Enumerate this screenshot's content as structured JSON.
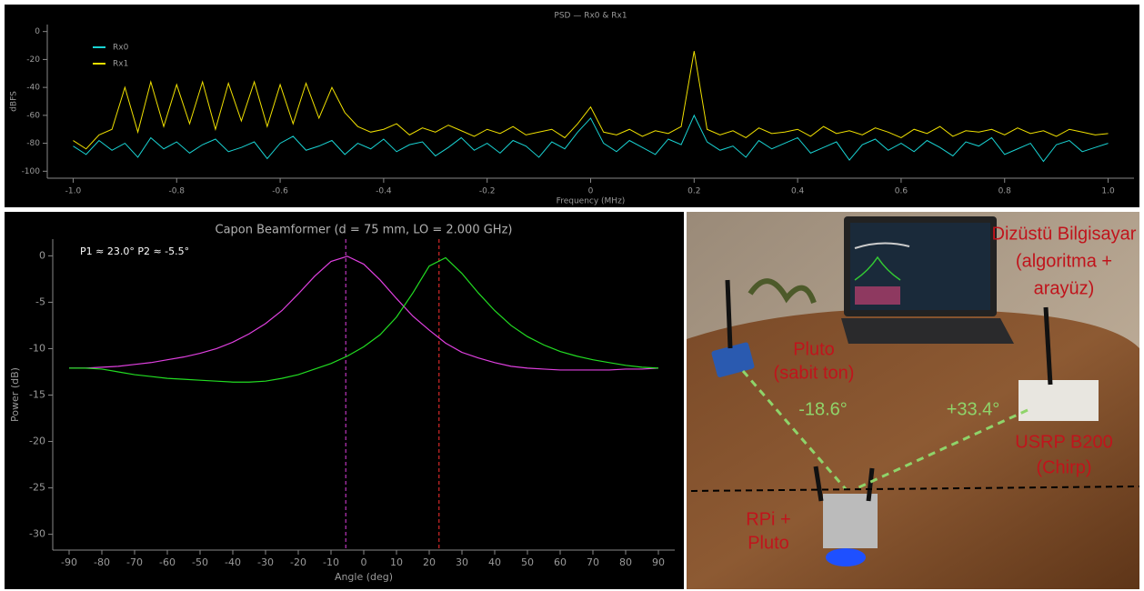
{
  "chart_data": [
    {
      "type": "line",
      "title": "PSD — Rx0 & Rx1",
      "x_label": "Frequency (MHz)",
      "y_label": "dBFS",
      "xlim": [
        -1.05,
        1.05
      ],
      "ylim": [
        -105,
        5
      ],
      "xticks": [
        {
          "value": -1.0,
          "label": "-1.0"
        },
        -0.8,
        -0.6,
        -0.4,
        -0.2,
        0,
        0.2,
        0.4,
        0.6,
        0.8,
        {
          "value": 1.0,
          "label": "1.0"
        }
      ],
      "yticks": [
        0,
        -20,
        -40,
        -60,
        -80,
        -100
      ],
      "legend": "upper left",
      "x": [
        -1.0,
        -0.975,
        -0.95,
        -0.925,
        -0.9,
        -0.875,
        -0.85,
        -0.825,
        -0.8,
        -0.775,
        -0.75,
        -0.725,
        -0.7,
        -0.675,
        -0.65,
        -0.625,
        -0.6,
        -0.575,
        -0.55,
        -0.525,
        -0.5,
        -0.475,
        -0.45,
        -0.425,
        -0.4,
        -0.375,
        -0.35,
        -0.325,
        -0.3,
        -0.275,
        -0.25,
        -0.225,
        -0.2,
        -0.175,
        -0.15,
        -0.125,
        -0.1,
        -0.075,
        -0.05,
        -0.025,
        0,
        0.025,
        0.05,
        0.075,
        0.1,
        0.125,
        0.15,
        0.175,
        0.2,
        0.225,
        0.25,
        0.275,
        0.3,
        0.325,
        0.35,
        0.375,
        0.4,
        0.425,
        0.45,
        0.475,
        0.5,
        0.525,
        0.55,
        0.575,
        0.6,
        0.625,
        0.65,
        0.675,
        0.7,
        0.725,
        0.75,
        0.775,
        0.8,
        0.825,
        0.85,
        0.875,
        0.9,
        0.925,
        0.95,
        0.975,
        1.0
      ],
      "series": [
        {
          "name": "Rx0",
          "color": "#19d3d3",
          "values": [
            -82,
            -88,
            -78,
            -85,
            -80,
            -90,
            -76,
            -84,
            -79,
            -87,
            -81,
            -77,
            -86,
            -83,
            -79,
            -91,
            -80,
            -75,
            -85,
            -82,
            -78,
            -88,
            -80,
            -84,
            -77,
            -86,
            -81,
            -79,
            -89,
            -83,
            -76,
            -85,
            -80,
            -87,
            -78,
            -82,
            -90,
            -79,
            -84,
            -72,
            -62,
            -80,
            -86,
            -78,
            -83,
            -88,
            -77,
            -81,
            -60,
            -79,
            -85,
            -82,
            -90,
            -78,
            -84,
            -80,
            -76,
            -87,
            -83,
            -79,
            -92,
            -81,
            -77,
            -85,
            -80,
            -86,
            -78,
            -83,
            -89,
            -79,
            -82,
            -76,
            -88,
            -84,
            -80,
            -93,
            -81,
            -78,
            -86,
            -83,
            -80
          ]
        },
        {
          "name": "Rx1",
          "color": "#f0e000",
          "values": [
            -78,
            -84,
            -74,
            -70,
            -40,
            -72,
            -36,
            -68,
            -38,
            -66,
            -36,
            -70,
            -37,
            -64,
            -36,
            -68,
            -38,
            -66,
            -37,
            -62,
            -40,
            -58,
            -68,
            -72,
            -70,
            -66,
            -74,
            -69,
            -72,
            -67,
            -71,
            -75,
            -70,
            -73,
            -68,
            -74,
            -72,
            -70,
            -76,
            -66,
            -54,
            -72,
            -74,
            -70,
            -75,
            -71,
            -73,
            -68,
            -14,
            -70,
            -74,
            -71,
            -76,
            -69,
            -73,
            -72,
            -70,
            -75,
            -68,
            -73,
            -71,
            -74,
            -69,
            -72,
            -76,
            -70,
            -73,
            -68,
            -75,
            -71,
            -72,
            -70,
            -74,
            -69,
            -73,
            -71,
            -75,
            -70,
            -72,
            -74,
            -73
          ]
        }
      ]
    },
    {
      "type": "line",
      "title": "Capon Beamformer (d = 75 mm, LO = 2.000 GHz)",
      "x_label": "Angle (deg)",
      "y_label": "Power (dB)",
      "annotation": "P1 ≈ 23.0°  P2 ≈ -5.5°",
      "xlim": [
        -95,
        95
      ],
      "ylim": [
        -31.7,
        1.8
      ],
      "xticks": [
        -90,
        -80,
        -70,
        -60,
        -50,
        -40,
        -30,
        -20,
        -10,
        0,
        10,
        20,
        30,
        40,
        50,
        60,
        70,
        80,
        90
      ],
      "yticks": [
        0,
        -5,
        -10,
        -15,
        -20,
        -25,
        -30
      ],
      "x": [
        -90,
        -85,
        -80,
        -75,
        -70,
        -65,
        -60,
        -55,
        -50,
        -45,
        -40,
        -35,
        -30,
        -25,
        -20,
        -15,
        -10,
        -5,
        0,
        5,
        10,
        15,
        20,
        25,
        30,
        35,
        40,
        45,
        50,
        55,
        60,
        65,
        70,
        75,
        80,
        85,
        90
      ],
      "series": [
        {
          "color": "#e040e0",
          "values": [
            -12.1,
            -12.1,
            -12.0,
            -11.9,
            -11.7,
            -11.5,
            -11.2,
            -10.9,
            -10.5,
            -10.0,
            -9.3,
            -8.4,
            -7.3,
            -5.9,
            -4.1,
            -2.2,
            -0.6,
            -0.05,
            -0.9,
            -2.6,
            -4.6,
            -6.5,
            -8.0,
            -9.4,
            -10.4,
            -11.0,
            -11.5,
            -11.9,
            -12.1,
            -12.2,
            -12.3,
            -12.3,
            -12.3,
            -12.3,
            -12.2,
            -12.2,
            -12.1
          ]
        },
        {
          "color": "#22dd22",
          "values": [
            -12.1,
            -12.1,
            -12.2,
            -12.5,
            -12.8,
            -13.0,
            -13.2,
            -13.3,
            -13.4,
            -13.5,
            -13.6,
            -13.6,
            -13.5,
            -13.2,
            -12.8,
            -12.2,
            -11.6,
            -10.8,
            -9.8,
            -8.5,
            -6.6,
            -4.0,
            -1.1,
            -0.2,
            -1.9,
            -4.0,
            -5.9,
            -7.5,
            -8.7,
            -9.6,
            -10.3,
            -10.8,
            -11.2,
            -11.5,
            -11.8,
            -12.0,
            -12.1
          ]
        }
      ],
      "markers": [
        {
          "x": 23.0,
          "color": "#ff3030"
        },
        {
          "x": -5.5,
          "color": "#e040e0"
        }
      ]
    }
  ],
  "photo": {
    "labels": [
      {
        "lines": [
          "Dizüstü Bilgisayar",
          "(algoritma +",
          "arayüz)"
        ],
        "color": "#c0141c"
      },
      {
        "lines": [
          "Pluto",
          "(sabit ton)"
        ],
        "color": "#c0141c"
      },
      {
        "lines": [
          "-18.6°"
        ],
        "color": "#8fd46a"
      },
      {
        "lines": [
          "+33.4°"
        ],
        "color": "#8fd46a"
      },
      {
        "lines": [
          "USRP B200",
          "(Chirp)"
        ],
        "color": "#c0141c"
      },
      {
        "lines": [
          "RPi +",
          "Pluto"
        ],
        "color": "#c0141c"
      }
    ]
  }
}
